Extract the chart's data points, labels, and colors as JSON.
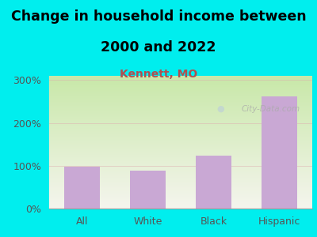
{
  "title_line1": "Change in household income between",
  "title_line2": "2000 and 2022",
  "subtitle": "Kennett, MO",
  "categories": [
    "All",
    "White",
    "Black",
    "Hispanic"
  ],
  "values": [
    97,
    88,
    123,
    262
  ],
  "bar_color": "#c9a8d4",
  "background_color": "#00EEEE",
  "title_fontsize": 12.5,
  "subtitle_fontsize": 10,
  "subtitle_color": "#b05050",
  "tick_label_color": "#555555",
  "ylim": [
    0,
    310
  ],
  "yticks": [
    0,
    100,
    200,
    300
  ],
  "ytick_labels": [
    "0%",
    "100%",
    "200%",
    "300%"
  ],
  "watermark": "City-Data.com",
  "watermark_color": "#aaaaaa",
  "grid_color": "#ddb0b0",
  "grid_alpha": 0.5,
  "plot_gradient_top": "#d0ebb0",
  "plot_gradient_bottom": "#f5f5ee"
}
